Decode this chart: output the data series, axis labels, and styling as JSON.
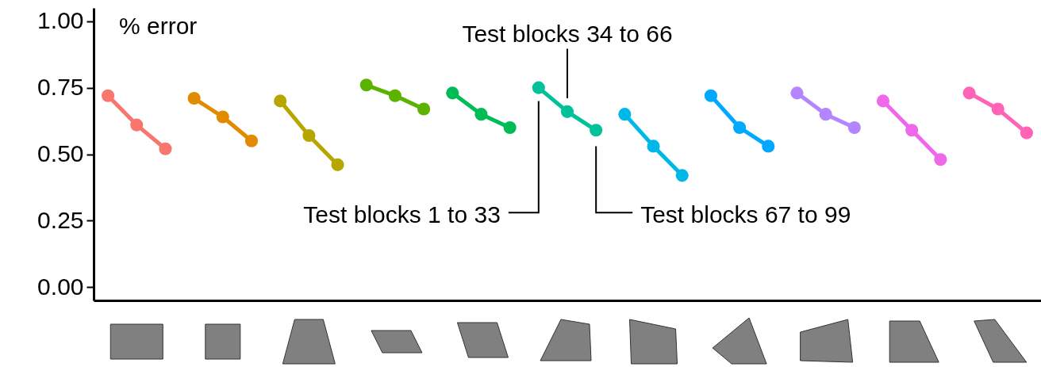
{
  "chart_data": {
    "type": "line",
    "ylabel": "% error",
    "categories": [
      null,
      null,
      null,
      null,
      null,
      null,
      null,
      null,
      null,
      null,
      null,
      null,
      null,
      null,
      null,
      null,
      null,
      null,
      null,
      null,
      null,
      null,
      null,
      null,
      null,
      null,
      null,
      null,
      null,
      null,
      null,
      null,
      null
    ],
    "series": [
      {
        "color": "#f8766d",
        "values": [
          0.72,
          0.61,
          0.52,
          null,
          null,
          null,
          null,
          null,
          null,
          null,
          null,
          null,
          null,
          null,
          null,
          null,
          null,
          null,
          null,
          null,
          null,
          null,
          null,
          null,
          null,
          null,
          null,
          null,
          null,
          null,
          null,
          null,
          null
        ]
      },
      {
        "color": "#e08b00",
        "values": [
          null,
          null,
          null,
          0.71,
          0.64,
          0.55,
          null,
          null,
          null,
          null,
          null,
          null,
          null,
          null,
          null,
          null,
          null,
          null,
          null,
          null,
          null,
          null,
          null,
          null,
          null,
          null,
          null,
          null,
          null,
          null,
          null,
          null,
          null
        ]
      },
      {
        "color": "#b8a600",
        "values": [
          null,
          null,
          null,
          null,
          null,
          null,
          0.7,
          0.57,
          0.46,
          null,
          null,
          null,
          null,
          null,
          null,
          null,
          null,
          null,
          null,
          null,
          null,
          null,
          null,
          null,
          null,
          null,
          null,
          null,
          null,
          null,
          null,
          null,
          null
        ]
      },
      {
        "color": "#5bb300",
        "values": [
          null,
          null,
          null,
          null,
          null,
          null,
          null,
          null,
          null,
          0.76,
          0.72,
          0.67,
          null,
          null,
          null,
          null,
          null,
          null,
          null,
          null,
          null,
          null,
          null,
          null,
          null,
          null,
          null,
          null,
          null,
          null,
          null,
          null,
          null
        ]
      },
      {
        "color": "#00bc56",
        "values": [
          null,
          null,
          null,
          null,
          null,
          null,
          null,
          null,
          null,
          null,
          null,
          null,
          0.73,
          0.65,
          0.6,
          null,
          null,
          null,
          null,
          null,
          null,
          null,
          null,
          null,
          null,
          null,
          null,
          null,
          null,
          null,
          null,
          null,
          null
        ]
      },
      {
        "color": "#00c19a",
        "values": [
          null,
          null,
          null,
          null,
          null,
          null,
          null,
          null,
          null,
          null,
          null,
          null,
          null,
          null,
          null,
          0.75,
          0.66,
          0.59,
          null,
          null,
          null,
          null,
          null,
          null,
          null,
          null,
          null,
          null,
          null,
          null,
          null,
          null,
          null
        ]
      },
      {
        "color": "#00b8e7",
        "values": [
          null,
          null,
          null,
          null,
          null,
          null,
          null,
          null,
          null,
          null,
          null,
          null,
          null,
          null,
          null,
          null,
          null,
          null,
          0.65,
          0.53,
          0.42,
          null,
          null,
          null,
          null,
          null,
          null,
          null,
          null,
          null,
          null,
          null,
          null
        ]
      },
      {
        "color": "#00a9ff",
        "values": [
          null,
          null,
          null,
          null,
          null,
          null,
          null,
          null,
          null,
          null,
          null,
          null,
          null,
          null,
          null,
          null,
          null,
          null,
          null,
          null,
          null,
          0.72,
          0.6,
          0.53,
          null,
          null,
          null,
          null,
          null,
          null,
          null,
          null,
          null
        ]
      },
      {
        "color": "#b385ff",
        "values": [
          null,
          null,
          null,
          null,
          null,
          null,
          null,
          null,
          null,
          null,
          null,
          null,
          null,
          null,
          null,
          null,
          null,
          null,
          null,
          null,
          null,
          null,
          null,
          null,
          0.73,
          0.65,
          0.6,
          null,
          null,
          null,
          null,
          null,
          null
        ]
      },
      {
        "color": "#ef67eb",
        "values": [
          null,
          null,
          null,
          null,
          null,
          null,
          null,
          null,
          null,
          null,
          null,
          null,
          null,
          null,
          null,
          null,
          null,
          null,
          null,
          null,
          null,
          null,
          null,
          null,
          null,
          null,
          null,
          0.7,
          0.59,
          0.48,
          null,
          null,
          null
        ]
      },
      {
        "color": "#ff63b6",
        "values": [
          null,
          null,
          null,
          null,
          null,
          null,
          null,
          null,
          null,
          null,
          null,
          null,
          null,
          null,
          null,
          null,
          null,
          null,
          null,
          null,
          null,
          null,
          null,
          null,
          null,
          null,
          null,
          null,
          null,
          null,
          0.73,
          0.67,
          0.58
        ]
      }
    ],
    "ylim": [
      -0.05,
      1.05
    ],
    "yticks": [
      {
        "value": 0,
        "label": "0.00"
      },
      {
        "value": 0.25,
        "label": "0.25"
      },
      {
        "value": 0.5,
        "label": "0.50"
      },
      {
        "value": 0.75,
        "label": "0.75"
      },
      {
        "value": 1,
        "label": "1.00"
      }
    ],
    "tick_labels": "y",
    "grid": false,
    "marker": "circle",
    "line_style": "solid",
    "annotations": [
      "Test blocks 34 to 66",
      "Test blocks 1 to 33",
      "Test blocks 67 to 99"
    ]
  }
}
